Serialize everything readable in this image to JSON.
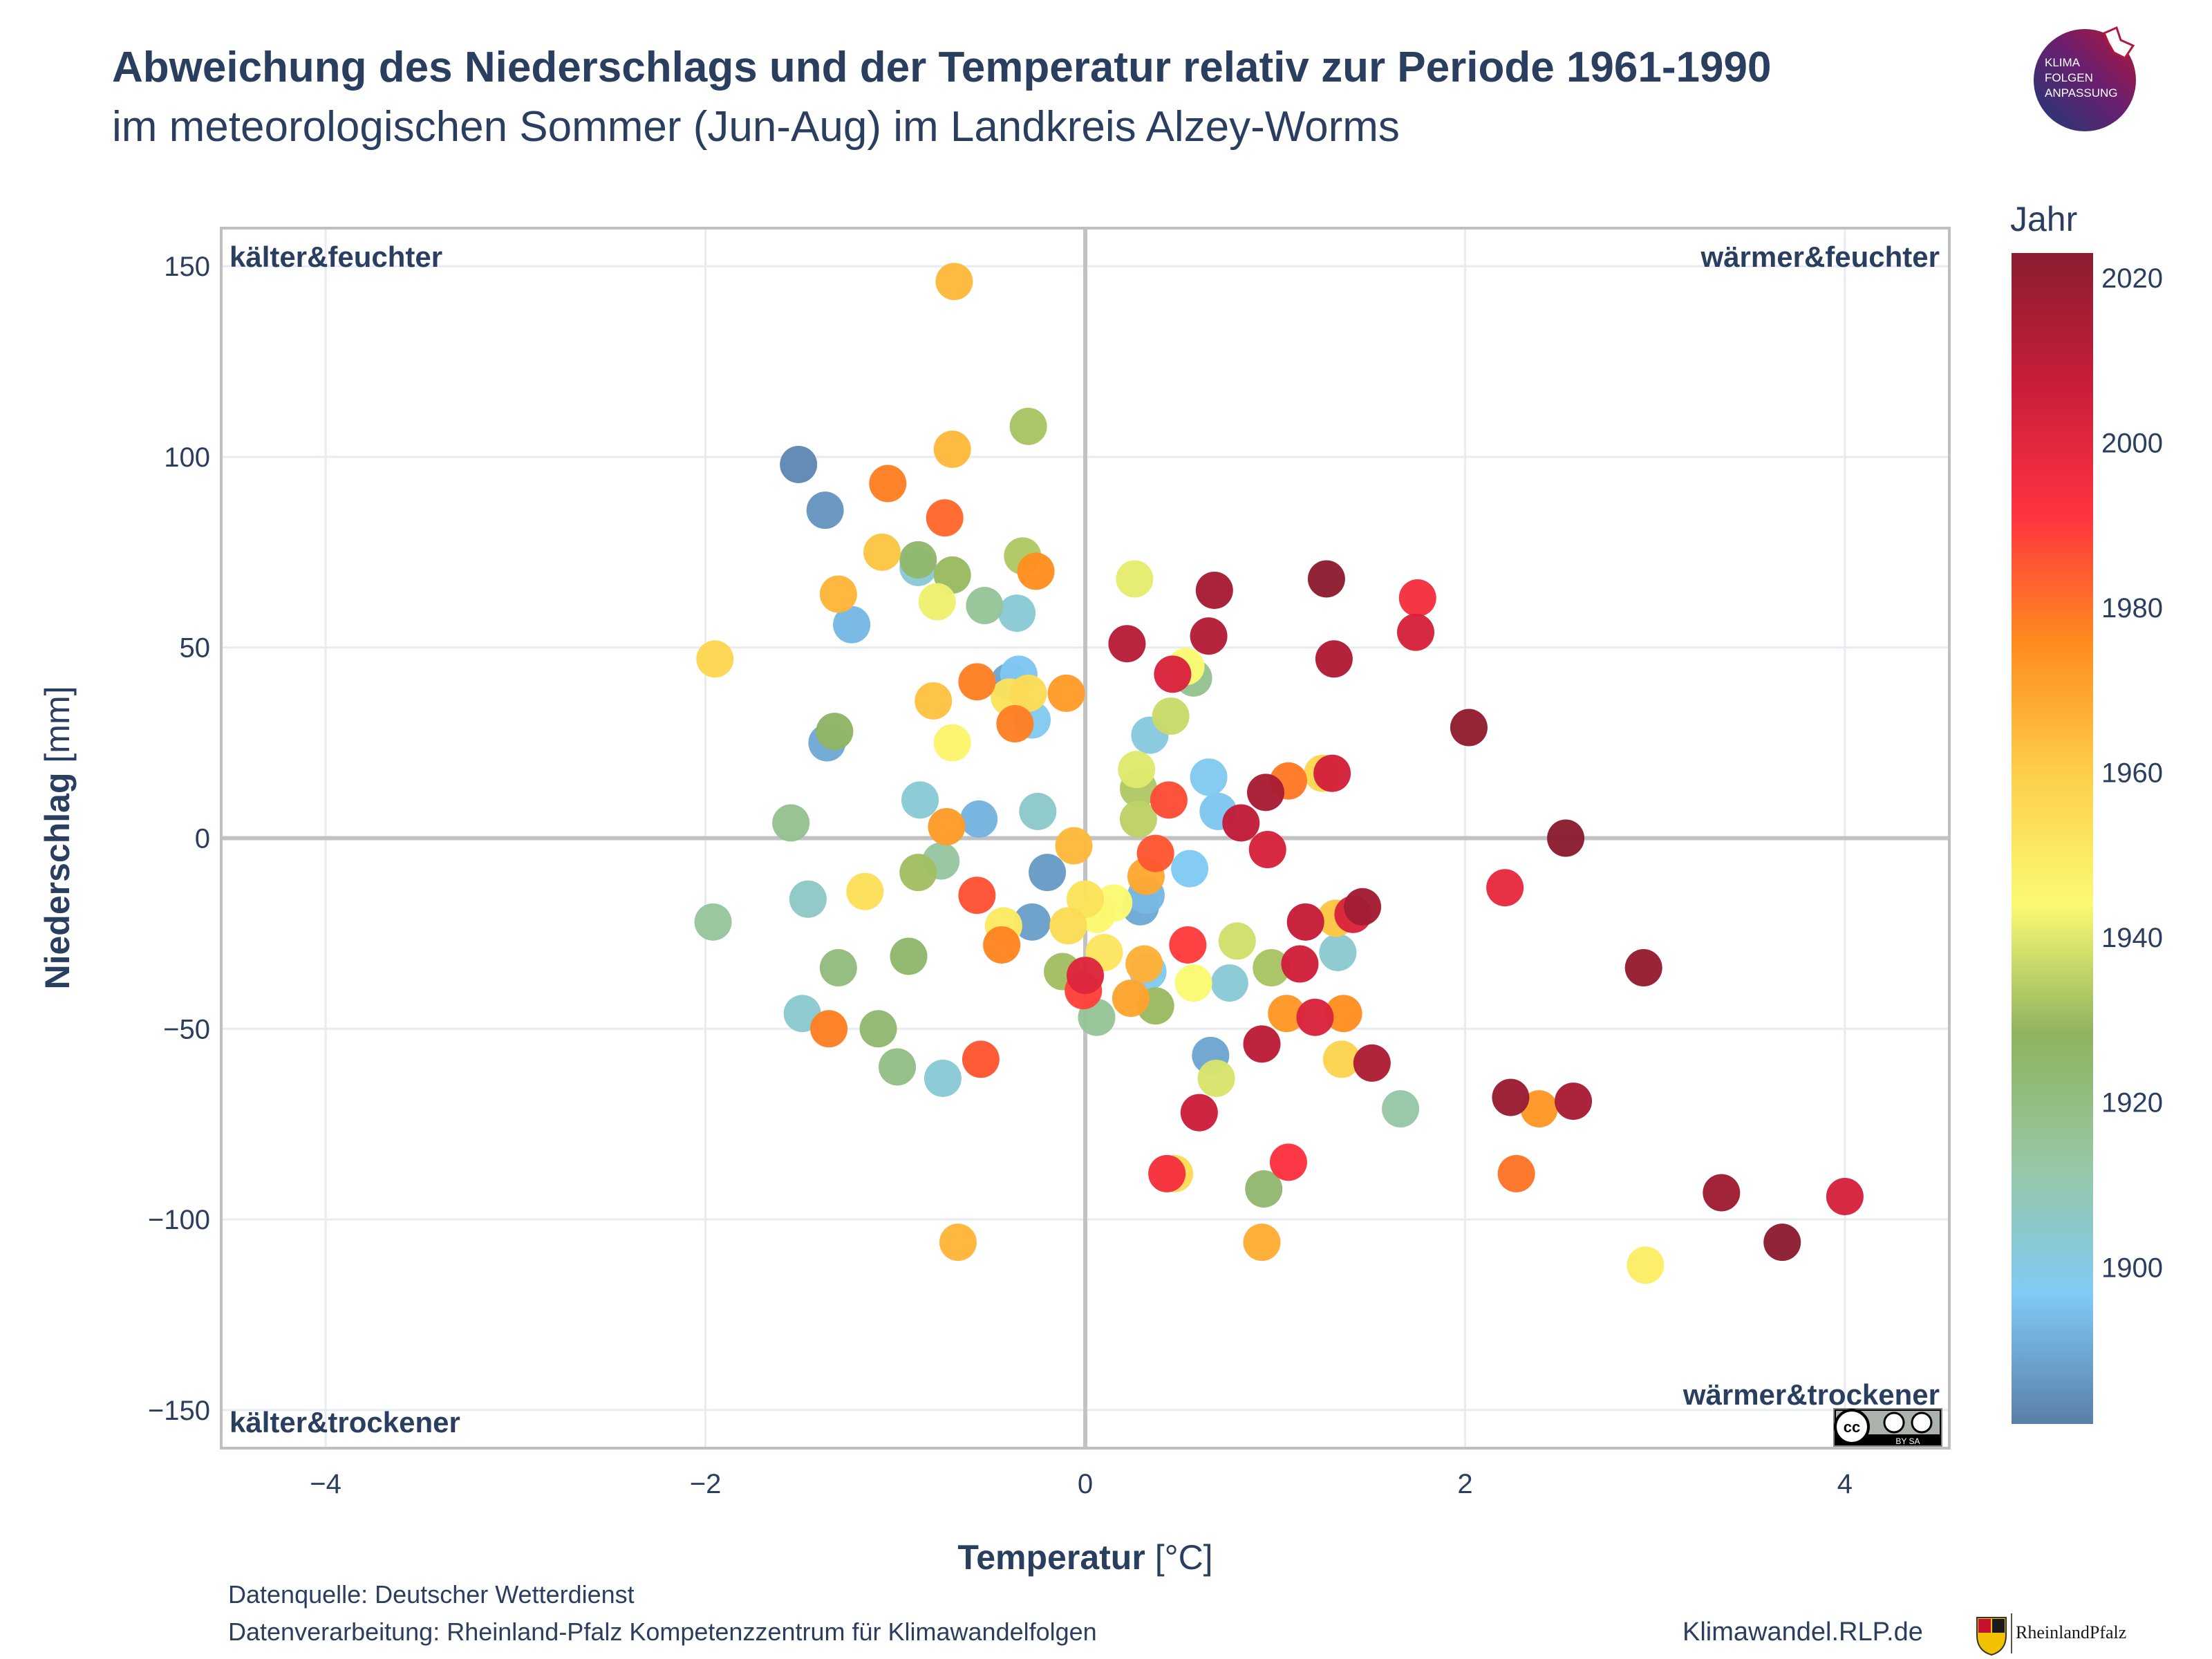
{
  "header": {
    "title": "Abweichung des Niederschlags und der Temperatur relativ zur Periode 1961-1990",
    "subtitle": "im meteorologischen Sommer (Jun-Aug) im Landkreis Alzey-Worms"
  },
  "logo": {
    "lines": [
      "KLIMA",
      "FOLGEN",
      "ANPASSUNG"
    ]
  },
  "footer": {
    "source": "Datenquelle: Deutscher Wetterdienst",
    "processing": "Datenverarbeitung: Rheinland-Pfalz Kompetenzzentrum für Klimawandelfolgen",
    "site": "Klimawandel.RLP.de",
    "state_logo_text": "RheinlandPfalz"
  },
  "license": {
    "text": "BY SA"
  },
  "chart_data": {
    "type": "scatter",
    "xlabel_bold": "Temperatur",
    "xlabel_unit": " [°C]",
    "ylabel_bold": "Niederschlag",
    "ylabel_unit": " [mm]",
    "xlim": [
      -4.55,
      4.55
    ],
    "ylim": [
      -160,
      160
    ],
    "xticks": [
      -4,
      -2,
      0,
      2,
      4
    ],
    "yticks": [
      -150,
      -100,
      -50,
      0,
      50,
      100,
      150
    ],
    "grid": true,
    "quadrant_labels": {
      "top_left": "kälter&feuchter",
      "top_right": "wärmer&feuchter",
      "bottom_left": "kälter&trockener",
      "bottom_right": "wärmer&trockener"
    },
    "colorbar": {
      "title": "Jahr",
      "min": 1881,
      "max": 2023,
      "ticks": [
        1900,
        1920,
        1940,
        1960,
        1980,
        2000,
        2020
      ],
      "colors": [
        "#5a7ea8",
        "#80caf5",
        "#97c7a3",
        "#8fb35f",
        "#fbfa72",
        "#fdcf4a",
        "#ff8c1f",
        "#fe3340",
        "#c81d3a",
        "#8a1d30"
      ]
    },
    "points": [
      {
        "x": -0.69,
        "y": 146,
        "year": 1965
      },
      {
        "x": -0.3,
        "y": 108,
        "year": 1932
      },
      {
        "x": -1.51,
        "y": 98,
        "year": 1883
      },
      {
        "x": -0.7,
        "y": 102,
        "year": 1965
      },
      {
        "x": -1.04,
        "y": 93,
        "year": 1978
      },
      {
        "x": -1.37,
        "y": 86,
        "year": 1886
      },
      {
        "x": -0.74,
        "y": 84,
        "year": 1982
      },
      {
        "x": -1.07,
        "y": 75,
        "year": 1962
      },
      {
        "x": -0.88,
        "y": 73,
        "year": 1925
      },
      {
        "x": -0.88,
        "y": 71,
        "year": 1903
      },
      {
        "x": -0.33,
        "y": 74,
        "year": 1933
      },
      {
        "x": -0.7,
        "y": 69,
        "year": 1930
      },
      {
        "x": -0.26,
        "y": 70,
        "year": 1975
      },
      {
        "x": 0.26,
        "y": 68,
        "year": 1941
      },
      {
        "x": 1.27,
        "y": 68,
        "year": 2022
      },
      {
        "x": 0.68,
        "y": 65,
        "year": 2016
      },
      {
        "x": 1.75,
        "y": 63,
        "year": 1994
      },
      {
        "x": -1.3,
        "y": 64,
        "year": 1966
      },
      {
        "x": -0.78,
        "y": 62,
        "year": 1942
      },
      {
        "x": -0.53,
        "y": 61,
        "year": 1915
      },
      {
        "x": -0.36,
        "y": 59,
        "year": 1903
      },
      {
        "x": -1.23,
        "y": 56,
        "year": 1893
      },
      {
        "x": 1.74,
        "y": 54,
        "year": 2003
      },
      {
        "x": 0.65,
        "y": 53,
        "year": 2012
      },
      {
        "x": 0.22,
        "y": 51,
        "year": 2011
      },
      {
        "x": 1.31,
        "y": 47,
        "year": 2013
      },
      {
        "x": -1.95,
        "y": 47,
        "year": 1957
      },
      {
        "x": 0.53,
        "y": 45,
        "year": 1944
      },
      {
        "x": 0.57,
        "y": 42,
        "year": 1917
      },
      {
        "x": 0.46,
        "y": 43,
        "year": 2002
      },
      {
        "x": -0.4,
        "y": 41,
        "year": 1889
      },
      {
        "x": -0.35,
        "y": 43,
        "year": 1896
      },
      {
        "x": -0.57,
        "y": 41,
        "year": 1978
      },
      {
        "x": -0.4,
        "y": 37,
        "year": 1953
      },
      {
        "x": -0.3,
        "y": 38,
        "year": 1955
      },
      {
        "x": -0.1,
        "y": 38,
        "year": 1972
      },
      {
        "x": -0.8,
        "y": 36,
        "year": 1963
      },
      {
        "x": -0.28,
        "y": 31,
        "year": 1898
      },
      {
        "x": 0.45,
        "y": 32,
        "year": 1937
      },
      {
        "x": -0.37,
        "y": 30,
        "year": 1978
      },
      {
        "x": 2.02,
        "y": 29,
        "year": 2021
      },
      {
        "x": -1.32,
        "y": 28,
        "year": 1927
      },
      {
        "x": -1.36,
        "y": 25,
        "year": 1890
      },
      {
        "x": -0.7,
        "y": 25,
        "year": 1946
      },
      {
        "x": 0.34,
        "y": 27,
        "year": 1901
      },
      {
        "x": 0.27,
        "y": 18,
        "year": 1940
      },
      {
        "x": 0.28,
        "y": 13,
        "year": 1933
      },
      {
        "x": 1.25,
        "y": 17,
        "year": 1957
      },
      {
        "x": 1.3,
        "y": 17,
        "year": 2004
      },
      {
        "x": 1.07,
        "y": 15,
        "year": 1979
      },
      {
        "x": 0.65,
        "y": 16,
        "year": 1898
      },
      {
        "x": 0.95,
        "y": 12,
        "year": 2015
      },
      {
        "x": 0.44,
        "y": 10,
        "year": 1987
      },
      {
        "x": 0.7,
        "y": 7,
        "year": 1896
      },
      {
        "x": -0.87,
        "y": 10,
        "year": 1903
      },
      {
        "x": -0.25,
        "y": 7,
        "year": 1905
      },
      {
        "x": -0.56,
        "y": 5,
        "year": 1892
      },
      {
        "x": 0.28,
        "y": 5,
        "year": 1935
      },
      {
        "x": 0.82,
        "y": 4,
        "year": 2009
      },
      {
        "x": -0.73,
        "y": 3,
        "year": 1972
      },
      {
        "x": -1.55,
        "y": 4,
        "year": 1917
      },
      {
        "x": 2.53,
        "y": 0,
        "year": 2023
      },
      {
        "x": 0.96,
        "y": -3,
        "year": 2003
      },
      {
        "x": -0.06,
        "y": -2,
        "year": 1965
      },
      {
        "x": 0.37,
        "y": -4,
        "year": 1985
      },
      {
        "x": -0.76,
        "y": -6,
        "year": 1913
      },
      {
        "x": 0.55,
        "y": -8,
        "year": 1897
      },
      {
        "x": -0.2,
        "y": -9,
        "year": 1887
      },
      {
        "x": -0.88,
        "y": -9,
        "year": 1931
      },
      {
        "x": 0.32,
        "y": -10,
        "year": 1969
      },
      {
        "x": 2.21,
        "y": -13,
        "year": 1998
      },
      {
        "x": -1.16,
        "y": -14,
        "year": 1954
      },
      {
        "x": -0.57,
        "y": -15,
        "year": 1986
      },
      {
        "x": 0.32,
        "y": -15,
        "year": 1893
      },
      {
        "x": -1.46,
        "y": -16,
        "year": 1906
      },
      {
        "x": 0.0,
        "y": -16,
        "year": 1953
      },
      {
        "x": 0.15,
        "y": -17,
        "year": 1944
      },
      {
        "x": 0.29,
        "y": -18,
        "year": 1890
      },
      {
        "x": 1.46,
        "y": -18,
        "year": 2017
      },
      {
        "x": 1.41,
        "y": -20,
        "year": 2002
      },
      {
        "x": 0.06,
        "y": -20,
        "year": 1945
      },
      {
        "x": 1.32,
        "y": -21,
        "year": 1962
      },
      {
        "x": 1.16,
        "y": -22,
        "year": 2008
      },
      {
        "x": -0.28,
        "y": -22,
        "year": 1888
      },
      {
        "x": -0.43,
        "y": -23,
        "year": 1950
      },
      {
        "x": -1.96,
        "y": -22,
        "year": 1914
      },
      {
        "x": -0.09,
        "y": -23,
        "year": 1955
      },
      {
        "x": -0.44,
        "y": -28,
        "year": 1977
      },
      {
        "x": 0.54,
        "y": -28,
        "year": 1990
      },
      {
        "x": 0.8,
        "y": -27,
        "year": 1938
      },
      {
        "x": 1.33,
        "y": -30,
        "year": 1904
      },
      {
        "x": 0.1,
        "y": -30,
        "year": 1952
      },
      {
        "x": 0.98,
        "y": -34,
        "year": 1932
      },
      {
        "x": 1.13,
        "y": -33,
        "year": 2005
      },
      {
        "x": -0.93,
        "y": -31,
        "year": 1925
      },
      {
        "x": 0.31,
        "y": -33,
        "year": 1967
      },
      {
        "x": 0.33,
        "y": -35,
        "year": 1898
      },
      {
        "x": -1.3,
        "y": -34,
        "year": 1921
      },
      {
        "x": -0.12,
        "y": -35,
        "year": 1931
      },
      {
        "x": 0.0,
        "y": -36,
        "year": 2001
      },
      {
        "x": -0.01,
        "y": -40,
        "year": 1989
      },
      {
        "x": 0.57,
        "y": -38,
        "year": 1944
      },
      {
        "x": 0.76,
        "y": -38,
        "year": 1903
      },
      {
        "x": 0.24,
        "y": -42,
        "year": 1970
      },
      {
        "x": 0.37,
        "y": -44,
        "year": 1930
      },
      {
        "x": 1.06,
        "y": -46,
        "year": 1973
      },
      {
        "x": 1.36,
        "y": -46,
        "year": 1975
      },
      {
        "x": 1.21,
        "y": -47,
        "year": 2002
      },
      {
        "x": 0.06,
        "y": -47,
        "year": 1915
      },
      {
        "x": -1.49,
        "y": -46,
        "year": 1904
      },
      {
        "x": -1.35,
        "y": -50,
        "year": 1978
      },
      {
        "x": -1.09,
        "y": -50,
        "year": 1924
      },
      {
        "x": 0.93,
        "y": -54,
        "year": 2010
      },
      {
        "x": 0.66,
        "y": -57,
        "year": 1889
      },
      {
        "x": -0.55,
        "y": -58,
        "year": 1985
      },
      {
        "x": 1.35,
        "y": -58,
        "year": 1958
      },
      {
        "x": 1.51,
        "y": -59,
        "year": 2014
      },
      {
        "x": -0.99,
        "y": -60,
        "year": 1919
      },
      {
        "x": -0.75,
        "y": -63,
        "year": 1903
      },
      {
        "x": 0.69,
        "y": -63,
        "year": 1939
      },
      {
        "x": 2.24,
        "y": -68,
        "year": 2019
      },
      {
        "x": 2.39,
        "y": -71,
        "year": 1973
      },
      {
        "x": 2.57,
        "y": -69,
        "year": 2015
      },
      {
        "x": 1.66,
        "y": -71,
        "year": 1912
      },
      {
        "x": 0.6,
        "y": -72,
        "year": 2006
      },
      {
        "x": 0.47,
        "y": -88,
        "year": 1955
      },
      {
        "x": 0.43,
        "y": -88,
        "year": 1994
      },
      {
        "x": 1.07,
        "y": -85,
        "year": 1992
      },
      {
        "x": 2.27,
        "y": -88,
        "year": 1980
      },
      {
        "x": 0.94,
        "y": -92,
        "year": 1924
      },
      {
        "x": 3.35,
        "y": -93,
        "year": 2018
      },
      {
        "x": 4.0,
        "y": -94,
        "year": 2003
      },
      {
        "x": -0.67,
        "y": -106,
        "year": 1966
      },
      {
        "x": 0.93,
        "y": -106,
        "year": 1968
      },
      {
        "x": 2.94,
        "y": -34,
        "year": 2020
      },
      {
        "x": 3.67,
        "y": -106,
        "year": 2022
      },
      {
        "x": 2.95,
        "y": -112,
        "year": 1949
      }
    ]
  }
}
